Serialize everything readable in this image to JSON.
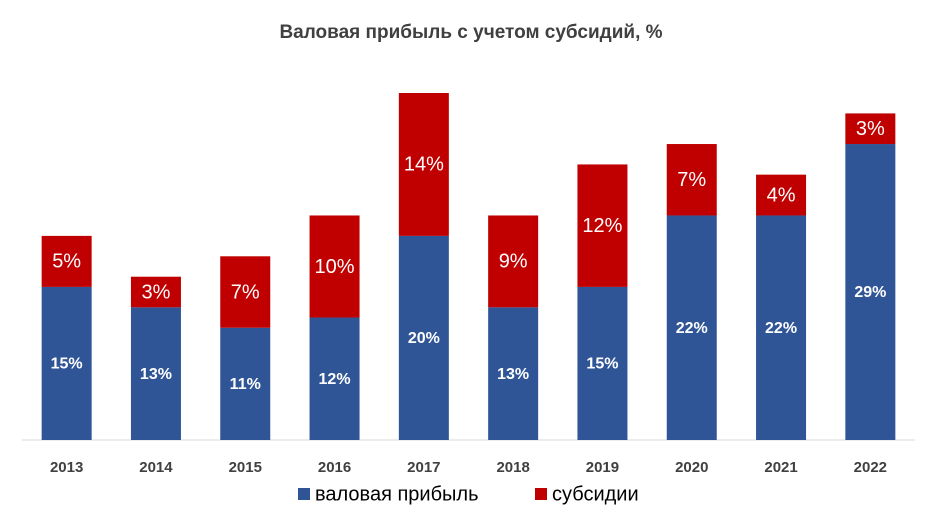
{
  "chart_data": {
    "type": "stacked_bar",
    "title": "Валовая прибыль  с учетом субсидий, %",
    "categories": [
      "2013",
      "2014",
      "2015",
      "2016",
      "2017",
      "2018",
      "2019",
      "2020",
      "2021",
      "2022"
    ],
    "series": [
      {
        "name": "валовая прибыль",
        "color": "#2f5597",
        "values": [
          15,
          13,
          11,
          12,
          20,
          13,
          15,
          22,
          22,
          29
        ],
        "value_labels": [
          "15%",
          "13%",
          "11%",
          "12%",
          "20%",
          "13%",
          "15%",
          "22%",
          "22%",
          "29%"
        ]
      },
      {
        "name": "субсидии",
        "color": "#c00000",
        "values": [
          5,
          3,
          7,
          10,
          14,
          9,
          12,
          7,
          4,
          3
        ],
        "value_labels": [
          "5%",
          "3%",
          "7%",
          "10%",
          "14%",
          "9%",
          "12%",
          "7%",
          "4%",
          "3%"
        ]
      }
    ]
  }
}
